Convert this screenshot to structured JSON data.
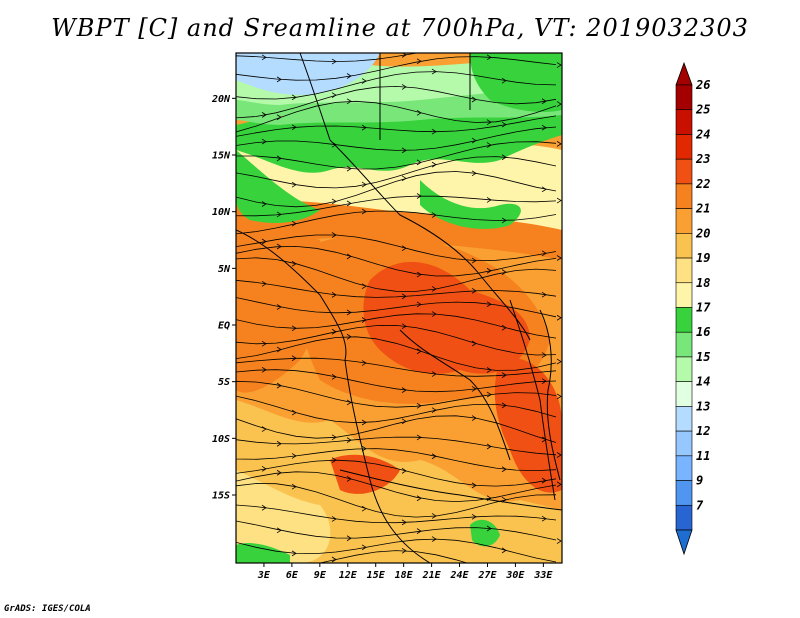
{
  "title": "WBPT [C] and Sreamline at 700hPa, VT: 2019032303",
  "footer": "GrADS: IGES/COLA",
  "map": {
    "lon_range": [
      0,
      35
    ],
    "lat_range": [
      -21,
      24
    ],
    "lat_ticks": [
      {
        "value": 20,
        "label": "20N"
      },
      {
        "value": 15,
        "label": "15N"
      },
      {
        "value": 10,
        "label": "10N"
      },
      {
        "value": 5,
        "label": "5N"
      },
      {
        "value": 0,
        "label": "EQ"
      },
      {
        "value": -5,
        "label": "5S"
      },
      {
        "value": -10,
        "label": "10S"
      },
      {
        "value": -15,
        "label": "15S"
      }
    ],
    "lon_ticks": [
      {
        "value": 3,
        "label": "3E"
      },
      {
        "value": 6,
        "label": "6E"
      },
      {
        "value": 9,
        "label": "9E"
      },
      {
        "value": 12,
        "label": "12E"
      },
      {
        "value": 15,
        "label": "15E"
      },
      {
        "value": 18,
        "label": "18E"
      },
      {
        "value": 21,
        "label": "21E"
      },
      {
        "value": 24,
        "label": "24E"
      },
      {
        "value": 27,
        "label": "27E"
      },
      {
        "value": 30,
        "label": "30E"
      },
      {
        "value": 33,
        "label": "33E"
      }
    ]
  },
  "colorbar": {
    "levels": [
      {
        "label": "26",
        "color": "#a50000"
      },
      {
        "label": "25",
        "color": "#c80f00"
      },
      {
        "label": "24",
        "color": "#e12800"
      },
      {
        "label": "23",
        "color": "#f05014"
      },
      {
        "label": "22",
        "color": "#f5821e"
      },
      {
        "label": "21",
        "color": "#faa032"
      },
      {
        "label": "20",
        "color": "#fac350"
      },
      {
        "label": "19",
        "color": "#fde182"
      },
      {
        "label": "18",
        "color": "#fff5aa"
      },
      {
        "label": "17",
        "color": "#37d23c"
      },
      {
        "label": "16",
        "color": "#78e678"
      },
      {
        "label": "15",
        "color": "#b4faaa"
      },
      {
        "label": "14",
        "color": "#e1ffe1"
      },
      {
        "label": "13",
        "color": "#b4dcff"
      },
      {
        "label": "12",
        "color": "#96c8ff"
      },
      {
        "label": "11",
        "color": "#78b4ff"
      },
      {
        "label": "9",
        "color": "#5096f0"
      },
      {
        "label": "7",
        "color": "#2864d2"
      }
    ],
    "top_arrow_color": "#a50000",
    "bottom_arrow_color": "#1e6ed2"
  },
  "field_colors": {
    "land_base": "#faa032",
    "warm": "#f5821e",
    "hot": "#f05014",
    "cool": "#fac350",
    "cooler": "#fde182",
    "pale": "#fff5aa",
    "green": "#37d23c",
    "lightgreen": "#78e678",
    "mint": "#b4faaa",
    "blue": "#b4dcff",
    "line": "#000000"
  }
}
